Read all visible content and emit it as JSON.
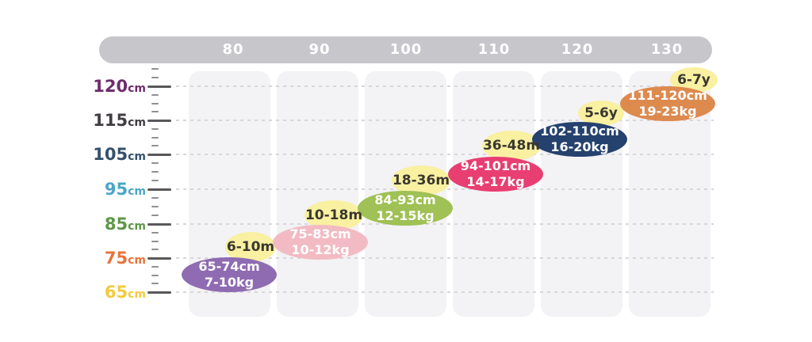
{
  "chart_data": {
    "type": "table",
    "x_axis": {
      "ticks": [
        "80",
        "90",
        "100",
        "110",
        "120",
        "130"
      ]
    },
    "y_axis": {
      "ticks": [
        {
          "value": "120",
          "unit": "cm",
          "color": "#6f2c6d"
        },
        {
          "value": "115",
          "unit": "cm",
          "color": "#413d42"
        },
        {
          "value": "105",
          "unit": "cm",
          "color": "#35506b"
        },
        {
          "value": "95",
          "unit": "cm",
          "color": "#4ba5c7"
        },
        {
          "value": "85",
          "unit": "cm",
          "color": "#5c9749"
        },
        {
          "value": "75",
          "unit": "cm",
          "color": "#e7743c"
        },
        {
          "value": "65",
          "unit": "cm",
          "color": "#f4ca3f"
        }
      ]
    },
    "entries": [
      {
        "size": "80",
        "age": "6-10m",
        "height": "65-74cm",
        "weight": "7-10kg",
        "bubble_color": "#8f6bb2"
      },
      {
        "size": "90",
        "age": "10-18m",
        "height": "75-83cm",
        "weight": "10-12kg",
        "bubble_color": "#f2bbc3"
      },
      {
        "size": "100",
        "age": "18-36m",
        "height": "84-93cm",
        "weight": "12-15kg",
        "bubble_color": "#9fc155"
      },
      {
        "size": "110",
        "age": "36-48m",
        "height": "94-101cm",
        "weight": "14-17kg",
        "bubble_color": "#e83e71"
      },
      {
        "size": "120",
        "age": "5-6y",
        "height": "102-110cm",
        "weight": "16-20kg",
        "bubble_color": "#25426f"
      },
      {
        "size": "130",
        "age": "6-7y",
        "height": "111-120cm",
        "weight": "19-23kg",
        "bubble_color": "#dd8a4f"
      }
    ]
  },
  "colors": {
    "topbar": "#c7c6ca",
    "band": "#f3f2f4",
    "dashed": "#d8d6da",
    "tick_major": "#5a575b",
    "tick_minor": "#918f94",
    "age_bubble": "#f9f0a1",
    "age_text": "#3a372f",
    "bubble_text": "#ffffff"
  }
}
